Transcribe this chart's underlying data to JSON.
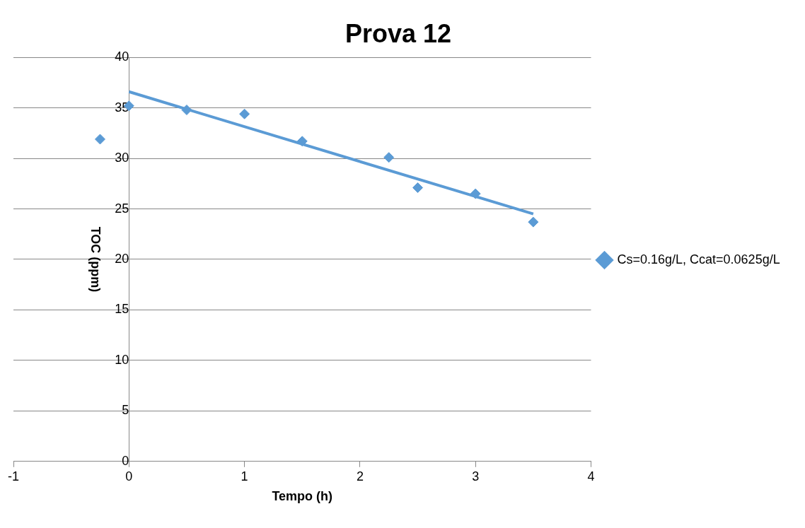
{
  "chart_data": {
    "type": "scatter",
    "title": "Prova 12",
    "xlabel": "Tempo (h)",
    "ylabel": "TOC (ppm)",
    "x": [
      -0.25,
      0,
      0.5,
      1,
      1.5,
      2.25,
      2.5,
      3,
      3.5
    ],
    "series": [
      {
        "name": "Cs=0.16g/L, Ccat=0.0625g/L",
        "color": "#5b9bd5",
        "values": [
          31.9,
          35.2,
          34.8,
          34.4,
          31.7,
          30.1,
          27.1,
          26.5,
          23.7
        ],
        "marker": "diamond"
      },
      {
        "type": "line",
        "color": "#5b9bd5",
        "x": [
          0,
          3.5
        ],
        "values": [
          36.6,
          24.5
        ],
        "marker": "none"
      }
    ],
    "xlim": [
      -1,
      4
    ],
    "xticks": [
      -1,
      0,
      1,
      2,
      3,
      4
    ],
    "ylim": [
      0,
      40
    ],
    "yticks": [
      0,
      5,
      10,
      15,
      20,
      25,
      30,
      35,
      40
    ],
    "grid": "y",
    "legend": "right"
  }
}
